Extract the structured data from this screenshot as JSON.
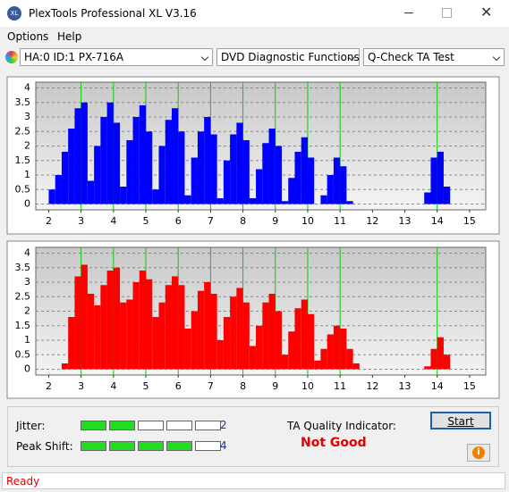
{
  "window": {
    "title": "PlexTools Professional XL V3.16"
  },
  "menu": [
    "Options",
    "Help"
  ],
  "toolbar": {
    "drive": "HA:0 ID:1  PX-716A",
    "function": "DVD Diagnostic Functions",
    "test": "Q-Check TA Test"
  },
  "chart_data": [
    {
      "type": "histogram",
      "color": "#0000ff",
      "bins": [
        2.0,
        2.2,
        2.4,
        2.6,
        2.8,
        3.0,
        3.2,
        3.4,
        3.6,
        3.8,
        4.0,
        4.2,
        4.4,
        4.6,
        4.8,
        5.0,
        5.2,
        5.4,
        5.6,
        5.8,
        6.0,
        6.2,
        6.4,
        6.6,
        6.8,
        7.0,
        7.2,
        7.4,
        7.6,
        7.8,
        8.0,
        8.2,
        8.4,
        8.6,
        8.8,
        9.0,
        9.2,
        9.4,
        9.6,
        9.8,
        10.0,
        10.2,
        10.4,
        10.6,
        10.8,
        11.0,
        11.2,
        11.4,
        11.6,
        11.8,
        12.0,
        12.2,
        12.4,
        12.6,
        12.8,
        13.0,
        13.2,
        13.4,
        13.6,
        13.8,
        14.0,
        14.2,
        14.4,
        14.6,
        14.8,
        15.0
      ],
      "values": [
        0.5,
        1.0,
        1.8,
        2.6,
        3.3,
        3.5,
        0.8,
        2.0,
        3.0,
        3.5,
        2.8,
        0.6,
        2.2,
        3.0,
        3.4,
        2.5,
        0.5,
        2.0,
        2.9,
        3.3,
        2.5,
        0.3,
        1.6,
        2.5,
        3.0,
        2.4,
        0.2,
        1.5,
        2.4,
        2.8,
        2.2,
        0.2,
        1.2,
        2.1,
        2.6,
        2.0,
        0.1,
        0.9,
        1.8,
        2.3,
        1.6,
        0,
        0.3,
        1.0,
        1.6,
        1.3,
        0.1,
        0,
        0,
        0,
        0,
        0,
        0,
        0,
        0,
        0,
        0,
        0,
        0.4,
        1.6,
        1.8,
        0.6,
        0,
        0,
        0
      ],
      "xlim": [
        1.6,
        15.5
      ],
      "xticks": [
        2,
        3,
        4,
        5,
        6,
        7,
        8,
        9,
        10,
        11,
        12,
        13,
        14,
        15
      ],
      "ylim": [
        -0.2,
        4.2
      ],
      "yticks": [
        0,
        0.5,
        1,
        1.5,
        2,
        2.5,
        3,
        3.5,
        4
      ],
      "grid": true,
      "highlight_lines": {
        "values": [
          3,
          4,
          5,
          6,
          7,
          8,
          9,
          10,
          11,
          14
        ],
        "color": "#00d000"
      }
    },
    {
      "type": "histogram",
      "color": "#ff0000",
      "bins": [
        2.0,
        2.2,
        2.4,
        2.6,
        2.8,
        3.0,
        3.2,
        3.4,
        3.6,
        3.8,
        4.0,
        4.2,
        4.4,
        4.6,
        4.8,
        5.0,
        5.2,
        5.4,
        5.6,
        5.8,
        6.0,
        6.2,
        6.4,
        6.6,
        6.8,
        7.0,
        7.2,
        7.4,
        7.6,
        7.8,
        8.0,
        8.2,
        8.4,
        8.6,
        8.8,
        9.0,
        9.2,
        9.4,
        9.6,
        9.8,
        10.0,
        10.2,
        10.4,
        10.6,
        10.8,
        11.0,
        11.2,
        11.4,
        11.6,
        11.8,
        12.0,
        12.2,
        12.4,
        12.6,
        12.8,
        13.0,
        13.2,
        13.4,
        13.6,
        13.8,
        14.0,
        14.2,
        14.4,
        14.6,
        14.8,
        15.0
      ],
      "values": [
        0,
        0,
        0.2,
        1.8,
        3.2,
        3.6,
        2.6,
        2.2,
        2.9,
        3.4,
        3.5,
        2.3,
        2.4,
        3.0,
        3.4,
        3.1,
        1.8,
        2.3,
        2.9,
        3.2,
        2.9,
        1.4,
        2.0,
        2.7,
        3.0,
        2.6,
        1.0,
        1.8,
        2.5,
        2.8,
        2.3,
        0.8,
        1.5,
        2.3,
        2.6,
        2.0,
        0.5,
        1.3,
        2.1,
        2.4,
        1.9,
        0.3,
        0.7,
        1.2,
        1.5,
        1.4,
        0.7,
        0.2,
        0,
        0,
        0,
        0,
        0,
        0,
        0,
        0,
        0,
        0,
        0.1,
        0.7,
        1.1,
        0.5,
        0,
        0,
        0
      ],
      "xlim": [
        1.6,
        15.5
      ],
      "xticks": [
        2,
        3,
        4,
        5,
        6,
        7,
        8,
        9,
        10,
        11,
        12,
        13,
        14,
        15
      ],
      "ylim": [
        -0.2,
        4.2
      ],
      "yticks": [
        0,
        0.5,
        1,
        1.5,
        2,
        2.5,
        3,
        3.5,
        4
      ],
      "grid": true,
      "highlight_lines": {
        "values": [
          3,
          4,
          5,
          6,
          7,
          8,
          9,
          10,
          11,
          14
        ],
        "color": "#00d000"
      }
    }
  ],
  "results": {
    "jitter": {
      "label": "Jitter:",
      "value": 2,
      "segments": 5
    },
    "peak_shift": {
      "label": "Peak Shift:",
      "value": 4,
      "segments": 5
    },
    "ta_label": "TA Quality Indicator:",
    "ta_value": "Not Good",
    "start": "Start"
  },
  "status": "Ready"
}
